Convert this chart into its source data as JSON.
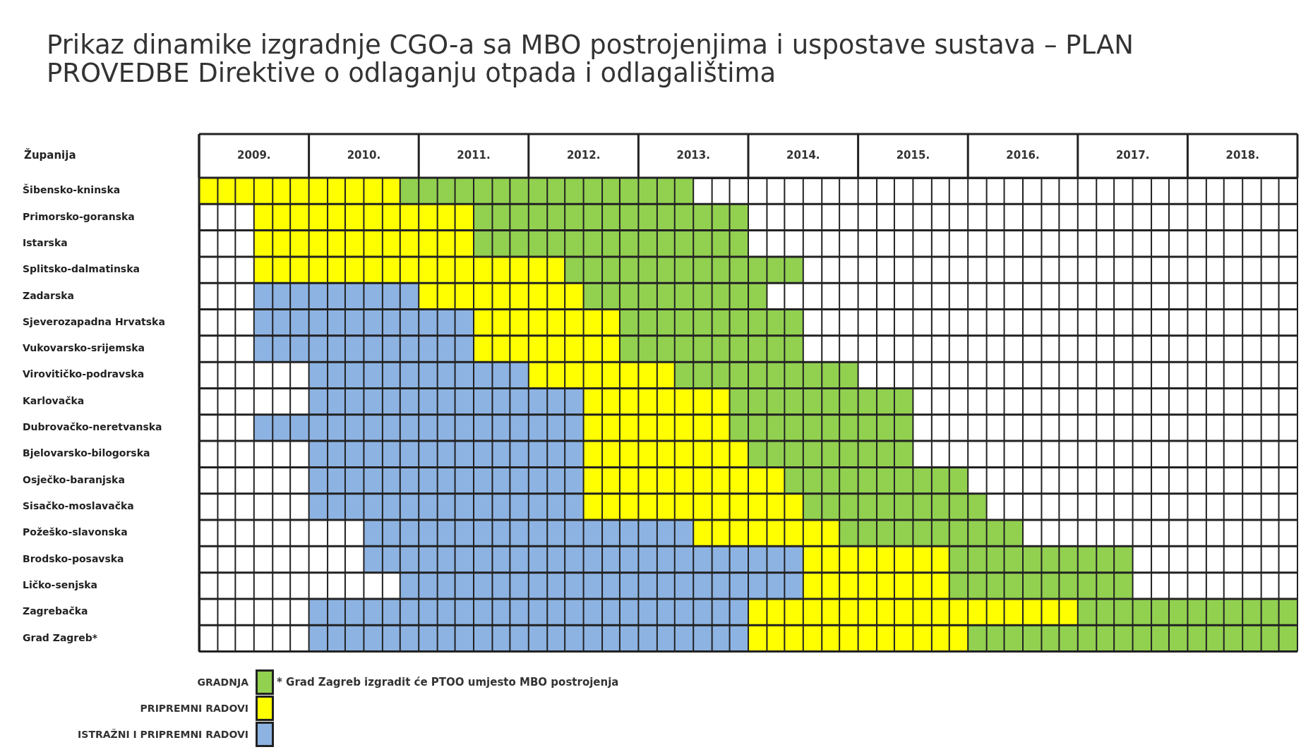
{
  "chart_data": {
    "type": "bar",
    "orientation": "horizontal",
    "stacked": false,
    "title": "Prikaz dinamike izgradnje CGO-a sa MBO postrojenjima i uspostave sustava – PLAN PROVEDBE Direktive o odlaganju otpada i odlagalištima",
    "ylabel": "Županija",
    "categories": [
      "Šibensko-kninska",
      "Primorsko-goranska",
      "Istarska",
      "Splitsko-dalmatinska",
      "Zadarska",
      "Sjeverozapadna Hrvatska",
      "Vukovarsko-srijemska",
      "Virovitičko-podravska",
      "Karlovačka",
      "Dubrovačko-neretvanska",
      "Bjelovarsko-bilogorska",
      "Osječko-baranjska",
      "Sisačko-moslavačka",
      "Požeško-slavonska",
      "Brodsko-posavska",
      "Ličko-senjska",
      "Zagrebačka",
      "Grad Zagreb*"
    ],
    "series": [
      {
        "name": "GRADNJA",
        "color": "#92d050",
        "base": [
          2010.33,
          2011,
          2011,
          2011.83,
          2012,
          2012.33,
          2012.33,
          2012.83,
          2013.33,
          2013.33,
          2013.5,
          2013.83,
          2014,
          2014.33,
          2015.33,
          2015.33,
          2016.5,
          2015.5
        ],
        "values": [
          2.67,
          2.5,
          2.5,
          2.17,
          1.67,
          1.67,
          1.67,
          1.67,
          1.67,
          1.67,
          1.5,
          1.67,
          1.67,
          1.67,
          1.67,
          1.67,
          2,
          3
        ]
      },
      {
        "name": "PRIPREMNI RADOVI",
        "color": "#ffff00",
        "base": [
          2008.5,
          2009,
          2009,
          2009,
          2010.5,
          2011,
          2011,
          2011.5,
          2012,
          2012,
          2012,
          2012,
          2012,
          2013,
          2014,
          2014,
          2013.5,
          2013.5
        ],
        "values": [
          1.83,
          2,
          2,
          2.83,
          1.5,
          1.33,
          1.33,
          1.33,
          1.33,
          1.33,
          1.5,
          1.83,
          2,
          1.33,
          1.33,
          1.33,
          3,
          2
        ]
      },
      {
        "name": "ISTRAŽNI I PRIPREMNI RADOVI",
        "color": "#8db3e2",
        "base": [
          null,
          null,
          null,
          null,
          2009,
          2009,
          2009,
          2009.5,
          2009.5,
          2009,
          2009.5,
          2009.5,
          2009.5,
          2010,
          2010,
          2010.33,
          2009.5,
          2009.5
        ],
        "values": [
          null,
          null,
          null,
          null,
          1.5,
          2,
          2,
          2,
          2.5,
          3,
          2.5,
          2.5,
          2.5,
          3,
          4,
          3.67,
          4,
          4
        ]
      }
    ],
    "xlim": [
      2008.5,
      2018.5
    ],
    "xticks": [
      {
        "value": 2008.5,
        "label": null
      },
      {
        "value": 2008.67,
        "label": null
      },
      {
        "value": 2008.83,
        "label": null
      },
      {
        "value": 2009,
        "label": "2009."
      },
      {
        "value": 2009.17,
        "label": null
      },
      {
        "value": 2009.33,
        "label": null
      },
      {
        "value": 2009.5,
        "label": null
      },
      {
        "value": 2009.67,
        "label": null
      },
      {
        "value": 2009.83,
        "label": null
      },
      {
        "value": 2010,
        "label": "2010."
      },
      {
        "value": 2010.17,
        "label": null
      },
      {
        "value": 2010.33,
        "label": null
      },
      {
        "value": 2010.5,
        "label": null
      },
      {
        "value": 2010.67,
        "label": null
      },
      {
        "value": 2010.83,
        "label": null
      },
      {
        "value": 2011,
        "label": "2011."
      },
      {
        "value": 2011.17,
        "label": null
      },
      {
        "value": 2011.33,
        "label": null
      },
      {
        "value": 2011.5,
        "label": null
      },
      {
        "value": 2011.67,
        "label": null
      },
      {
        "value": 2011.83,
        "label": null
      },
      {
        "value": 2012,
        "label": "2012."
      },
      {
        "value": 2012.17,
        "label": null
      },
      {
        "value": 2012.33,
        "label": null
      },
      {
        "value": 2012.5,
        "label": null
      },
      {
        "value": 2012.67,
        "label": null
      },
      {
        "value": 2012.83,
        "label": null
      },
      {
        "value": 2013,
        "label": "2013."
      },
      {
        "value": 2013.17,
        "label": null
      },
      {
        "value": 2013.33,
        "label": null
      },
      {
        "value": 2013.5,
        "label": null
      },
      {
        "value": 2013.67,
        "label": null
      },
      {
        "value": 2013.83,
        "label": null
      },
      {
        "value": 2014,
        "label": "2014."
      },
      {
        "value": 2014.17,
        "label": null
      },
      {
        "value": 2014.33,
        "label": null
      },
      {
        "value": 2014.5,
        "label": null
      },
      {
        "value": 2014.67,
        "label": null
      },
      {
        "value": 2014.83,
        "label": null
      },
      {
        "value": 2015,
        "label": "2015."
      },
      {
        "value": 2015.17,
        "label": null
      },
      {
        "value": 2015.33,
        "label": null
      },
      {
        "value": 2015.5,
        "label": null
      },
      {
        "value": 2015.67,
        "label": null
      },
      {
        "value": 2015.83,
        "label": null
      },
      {
        "value": 2016,
        "label": "2016."
      },
      {
        "value": 2016.17,
        "label": null
      },
      {
        "value": 2016.33,
        "label": null
      },
      {
        "value": 2016.5,
        "label": null
      },
      {
        "value": 2016.67,
        "label": null
      },
      {
        "value": 2016.83,
        "label": null
      },
      {
        "value": 2017,
        "label": "2017."
      },
      {
        "value": 2017.17,
        "label": null
      },
      {
        "value": 2017.33,
        "label": null
      },
      {
        "value": 2017.5,
        "label": null
      },
      {
        "value": 2017.67,
        "label": null
      },
      {
        "value": 2017.83,
        "label": null
      },
      {
        "value": 2018,
        "label": "2018."
      },
      {
        "value": 2018.17,
        "label": null
      },
      {
        "value": 2018.33,
        "label": null
      },
      {
        "value": 2018.5,
        "label": null
      }
    ],
    "grid": true,
    "legend": "bottom left",
    "annotations": [
      "* Grad Zagreb izgradit će PTOO umjesto MBO postrojenja"
    ]
  }
}
